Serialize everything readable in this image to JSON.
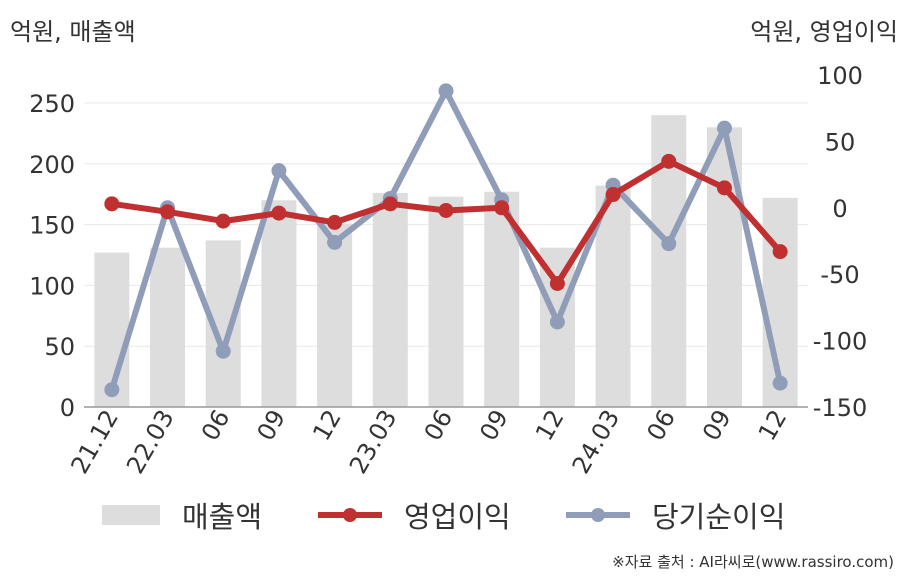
{
  "units": {
    "left": "억원, 매출액",
    "right": "억원, 영업이익"
  },
  "source_note": "※자료 출처 : AI라씨로(www.rassiro.com)",
  "legend": [
    {
      "key": "revenue",
      "label": "매출액"
    },
    {
      "key": "op",
      "label": "영업이익"
    },
    {
      "key": "net",
      "label": "당기순이익"
    }
  ],
  "chart_data": {
    "type": "bar",
    "categories": [
      "21.12",
      "22.03",
      "06",
      "09",
      "12",
      "23.03",
      "06",
      "09",
      "12",
      "24.03",
      "06",
      "09",
      "12"
    ],
    "left_axis": {
      "ylim": [
        0,
        250
      ],
      "ticks": [
        0,
        50,
        100,
        150,
        200,
        250
      ]
    },
    "right_axis": {
      "ylim": [
        -150,
        100
      ],
      "ticks": [
        -150,
        -100,
        -50,
        0,
        50,
        100
      ]
    },
    "grid": true,
    "legend_position": "bottom",
    "series": [
      {
        "key": "revenue",
        "name": "매출액",
        "type": "bar",
        "axis": "left",
        "color": "#dddddd",
        "values": [
          127,
          131,
          137,
          170,
          151,
          176,
          173,
          177,
          131,
          182,
          240,
          230,
          172
        ]
      },
      {
        "key": "op",
        "name": "영업이익",
        "type": "line",
        "axis": "right",
        "color": "#c03030",
        "values": [
          3,
          -3,
          -10,
          -4,
          -11,
          3,
          -2,
          0,
          -57,
          10,
          35,
          15,
          -33
        ]
      },
      {
        "key": "net",
        "name": "당기순이익",
        "type": "line",
        "axis": "right",
        "color": "#8f9db9",
        "values": [
          -137,
          0,
          -108,
          28,
          -26,
          7,
          88,
          6,
          -86,
          17,
          -27,
          60,
          -132
        ]
      }
    ]
  }
}
